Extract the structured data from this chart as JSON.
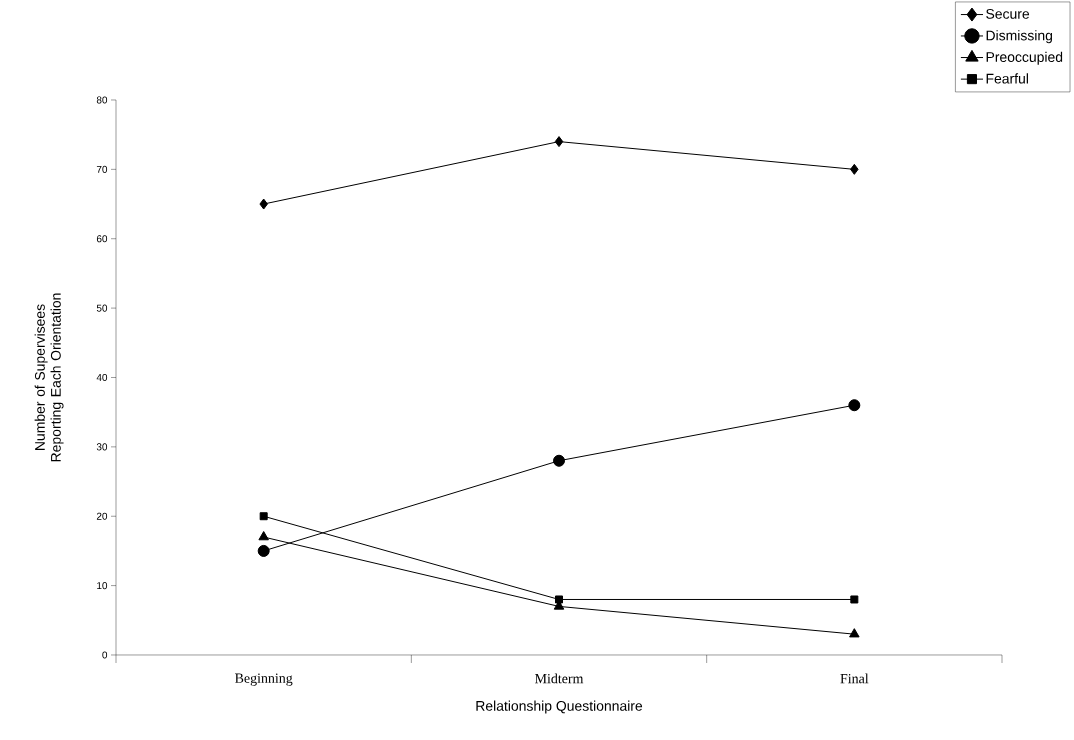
{
  "chart_data": {
    "type": "line",
    "xlabel": "Relationship Questionnaire",
    "ylabel": "Number of Supervisees Reporting Each Orientation",
    "categories": [
      "Beginning",
      "Midterm",
      "Final"
    ],
    "series": [
      {
        "name": "Secure",
        "color": "#000000",
        "marker": "diamond",
        "values": [
          65,
          74,
          70
        ]
      },
      {
        "name": "Dismissing",
        "color": "#000000",
        "marker": "circle",
        "values": [
          15,
          28,
          36
        ]
      },
      {
        "name": "Preoccupied",
        "color": "#000000",
        "marker": "triangle",
        "values": [
          17,
          7,
          3
        ]
      },
      {
        "name": "Fearful",
        "color": "#000000",
        "marker": "square",
        "values": [
          20,
          8,
          8
        ]
      }
    ],
    "ylim": [
      0,
      80
    ],
    "yticks": [
      0,
      10,
      20,
      30,
      40,
      50,
      60,
      70,
      80
    ],
    "grid": false,
    "legend": "top right",
    "line_style": "solid"
  }
}
